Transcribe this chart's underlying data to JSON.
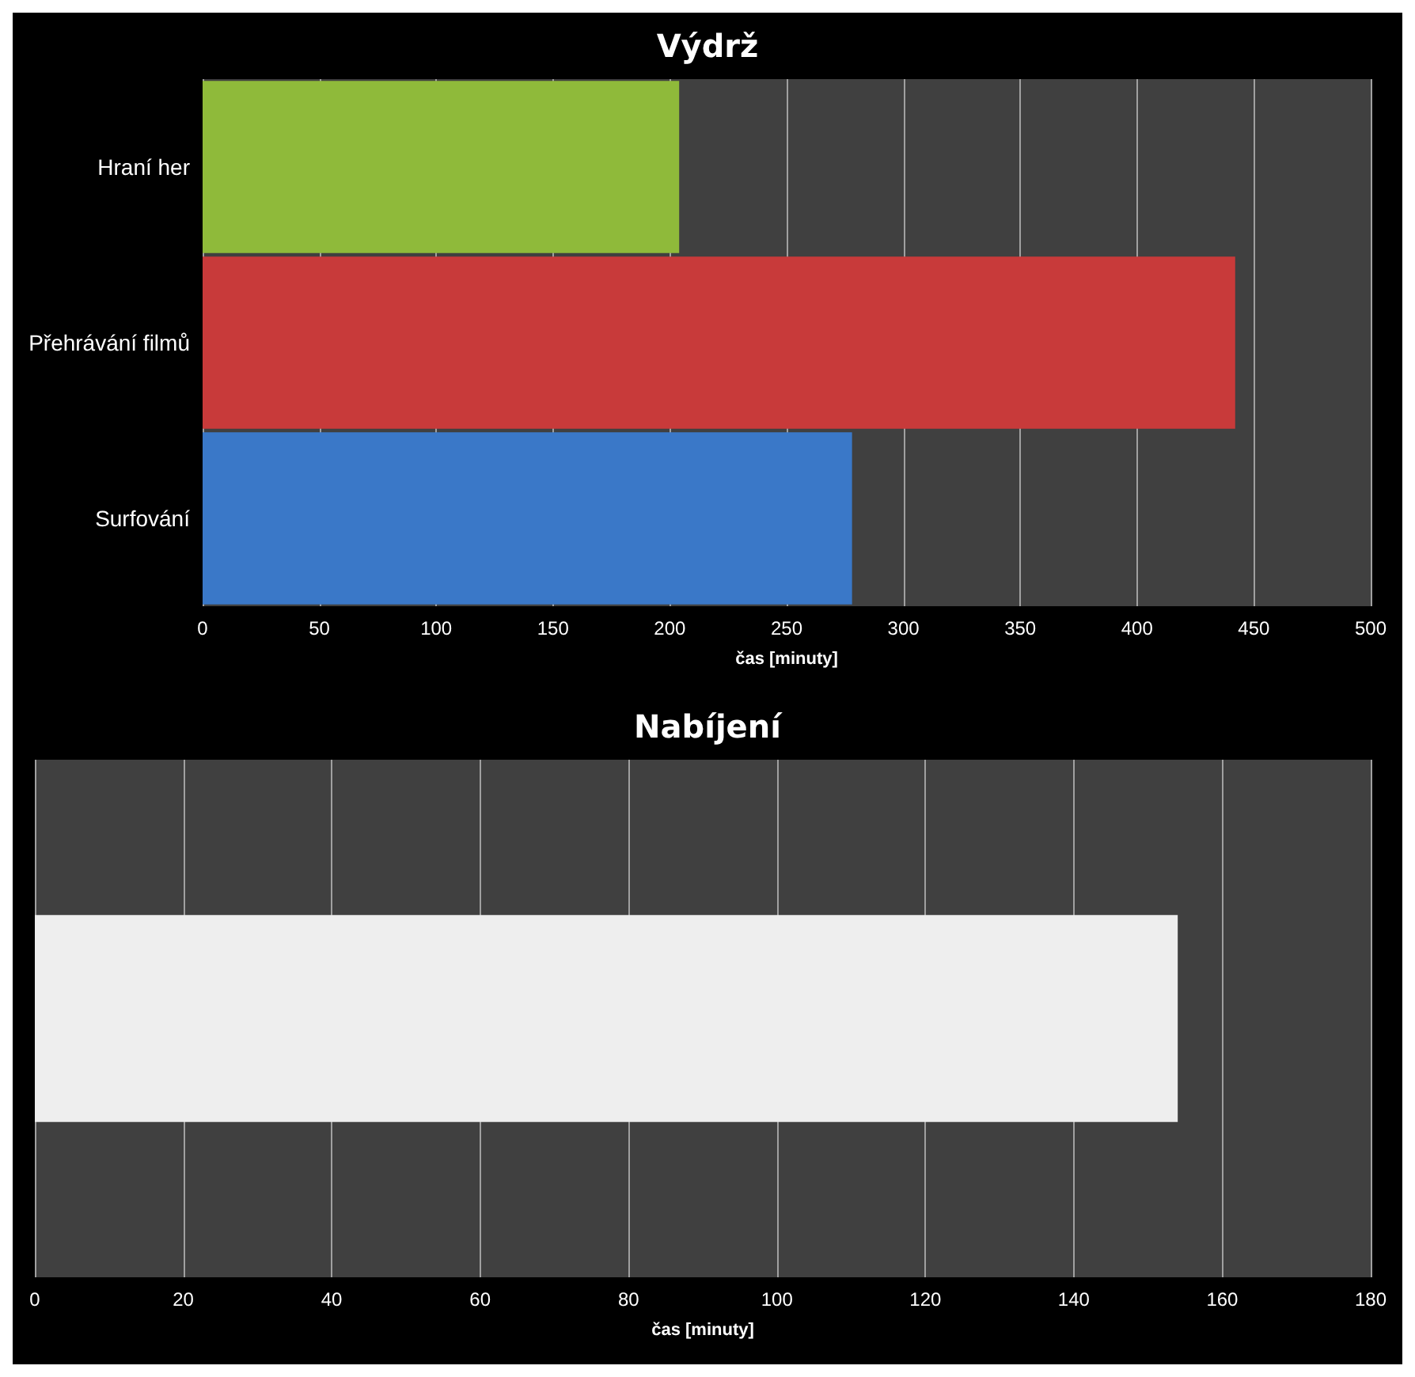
{
  "chart_data": [
    {
      "type": "bar",
      "orientation": "horizontal",
      "title": "Výdrž",
      "xlabel": "čas [minuty]",
      "categories": [
        "Hraní her",
        "Přehrávání filmů",
        "Surfování"
      ],
      "values": [
        204,
        442,
        278
      ],
      "colors": [
        "#8fba3a",
        "#c83a3a",
        "#3a78c8"
      ],
      "xlim": [
        0,
        500
      ],
      "xticks": [
        0,
        50,
        100,
        150,
        200,
        250,
        300,
        350,
        400,
        450,
        500
      ],
      "grid": "x"
    },
    {
      "type": "bar",
      "orientation": "horizontal",
      "title": "Nabíjení",
      "xlabel": "čas [minuty]",
      "categories": [
        null
      ],
      "values": [
        154
      ],
      "colors": [
        "#eeeeee"
      ],
      "xlim": [
        0,
        180
      ],
      "xticks": [
        0,
        20,
        40,
        60,
        80,
        100,
        120,
        140,
        160,
        180
      ],
      "grid": "x"
    }
  ]
}
